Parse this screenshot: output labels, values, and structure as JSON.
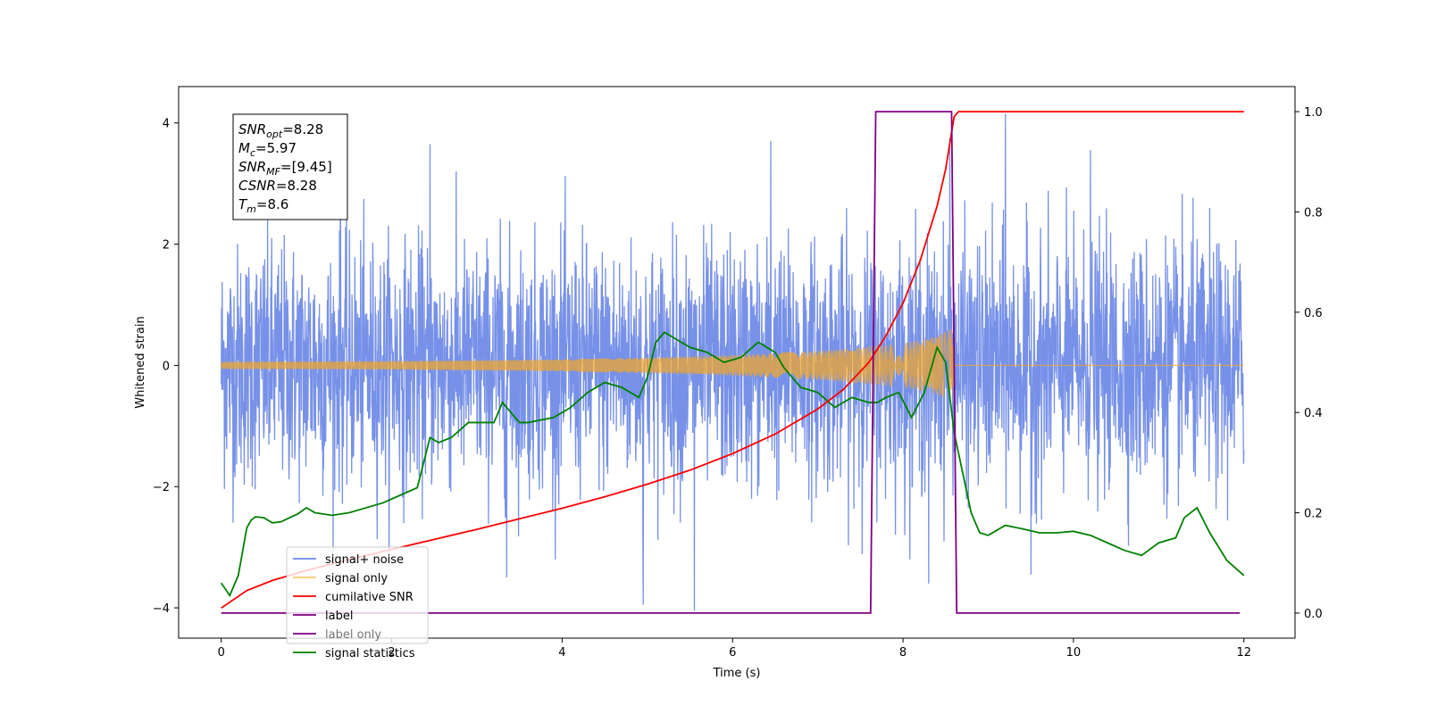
{
  "chart_data": {
    "type": "line",
    "xlabel": "Time (s)",
    "ylabel": "Whitened strain",
    "xlim": [
      -0.5,
      12.6
    ],
    "ylim": [
      -4.5,
      4.6
    ],
    "y2lim": [
      -0.05,
      1.05
    ],
    "x_ticks": [
      0,
      2,
      4,
      6,
      8,
      10,
      12
    ],
    "y_ticks": [
      -4,
      -2,
      0,
      2,
      4
    ],
    "y2_ticks": [
      0.0,
      0.2,
      0.4,
      0.6,
      0.8,
      1.0
    ],
    "x_tick_labels": [
      "0",
      "2",
      "4",
      "6",
      "8",
      "10",
      "12"
    ],
    "y_tick_labels": [
      "−4",
      "−2",
      "0",
      "2",
      "4"
    ],
    "y2_tick_labels": [
      "0.0",
      "0.2",
      "0.4",
      "0.6",
      "0.8",
      "1.0"
    ],
    "legend_position": "lower-left",
    "grid": false,
    "info_box": {
      "lines": [
        {
          "var": "SNR",
          "sub": "opt",
          "value": "=8.28"
        },
        {
          "var": "M",
          "sub": "c",
          "value": "=5.97"
        },
        {
          "var": "SNR",
          "sub": "MF",
          "value": "=[9.45]"
        },
        {
          "var": "CSNR",
          "sub": "",
          "value": "=8.28"
        },
        {
          "var": "T",
          "sub": "m",
          "value": "=8.6"
        }
      ]
    },
    "series": [
      {
        "name": "signal+ noise",
        "color": "#6b88e6",
        "axis": "left",
        "kind": "noise",
        "t_start": 0,
        "t_end": 12,
        "typical_range": [
          -1.8,
          1.8
        ],
        "extremes": [
          {
            "x": 4.95,
            "y": -3.95
          },
          {
            "x": 5.55,
            "y": -4.05
          },
          {
            "x": 9.2,
            "y": 4.15
          },
          {
            "x": 2.45,
            "y": 3.65
          },
          {
            "x": 6.45,
            "y": 3.7
          },
          {
            "x": 8.55,
            "y": 3.75
          },
          {
            "x": 1.4,
            "y": 3.35
          },
          {
            "x": 10.2,
            "y": 3.55
          },
          {
            "x": 3.35,
            "y": -3.5
          },
          {
            "x": 8.3,
            "y": -3.6
          },
          {
            "x": 9.5,
            "y": -3.45
          }
        ]
      },
      {
        "name": "signal only",
        "color": "#f5a623",
        "axis": "left",
        "kind": "chirp",
        "t_merge": 8.6,
        "envelope": [
          [
            0,
            0.06
          ],
          [
            2,
            0.07
          ],
          [
            4,
            0.1
          ],
          [
            5,
            0.13
          ],
          [
            6,
            0.17
          ],
          [
            7,
            0.24
          ],
          [
            7.5,
            0.3
          ],
          [
            8.0,
            0.37
          ],
          [
            8.3,
            0.44
          ],
          [
            8.6,
            0.62
          ]
        ]
      },
      {
        "name": "cumilative SNR",
        "color": "#ff0000",
        "axis": "right",
        "x": [
          0,
          0.3,
          0.6,
          1,
          1.5,
          2,
          2.5,
          3,
          3.5,
          4,
          4.5,
          5,
          5.5,
          6,
          6.5,
          7,
          7.3,
          7.6,
          7.8,
          8.0,
          8.2,
          8.4,
          8.5,
          8.6,
          8.65,
          12
        ],
        "y": [
          0.01,
          0.045,
          0.065,
          0.085,
          0.107,
          0.127,
          0.147,
          0.167,
          0.188,
          0.209,
          0.232,
          0.257,
          0.285,
          0.318,
          0.357,
          0.407,
          0.446,
          0.5,
          0.553,
          0.618,
          0.702,
          0.812,
          0.885,
          0.99,
          1.0,
          1.0
        ]
      },
      {
        "name": "label",
        "color": "#800080",
        "axis": "right",
        "x": [
          0,
          7.62,
          7.68,
          8.57,
          8.63,
          11.95
        ],
        "y": [
          0,
          0,
          1,
          1,
          0,
          0
        ]
      },
      {
        "name": "label only",
        "color": "#800080",
        "axis": "right",
        "x": [],
        "y": []
      },
      {
        "name": "signal statistics",
        "color": "#008000",
        "axis": "right",
        "x": [
          0,
          0.1,
          0.2,
          0.3,
          0.35,
          0.4,
          0.5,
          0.6,
          0.7,
          0.8,
          0.9,
          1.0,
          1.1,
          1.3,
          1.5,
          1.7,
          1.9,
          2.1,
          2.3,
          2.45,
          2.55,
          2.7,
          2.9,
          3.0,
          3.2,
          3.3,
          3.5,
          3.6,
          3.9,
          4.1,
          4.3,
          4.5,
          4.7,
          4.9,
          5.0,
          5.1,
          5.2,
          5.3,
          5.5,
          5.7,
          5.9,
          6.1,
          6.3,
          6.5,
          6.6,
          6.8,
          7.0,
          7.2,
          7.4,
          7.6,
          7.7,
          7.8,
          7.95,
          8.1,
          8.25,
          8.4,
          8.5,
          8.6,
          8.7,
          8.8,
          8.9,
          9.0,
          9.2,
          9.4,
          9.6,
          9.8,
          10.0,
          10.2,
          10.4,
          10.6,
          10.8,
          11.0,
          11.2,
          11.3,
          11.45,
          11.6,
          11.8,
          12.0
        ],
        "y": [
          0.06,
          0.035,
          0.075,
          0.17,
          0.185,
          0.192,
          0.19,
          0.18,
          0.182,
          0.19,
          0.198,
          0.21,
          0.2,
          0.195,
          0.2,
          0.21,
          0.22,
          0.235,
          0.25,
          0.35,
          0.34,
          0.35,
          0.38,
          0.38,
          0.38,
          0.42,
          0.38,
          0.38,
          0.39,
          0.41,
          0.44,
          0.46,
          0.45,
          0.43,
          0.47,
          0.54,
          0.56,
          0.55,
          0.53,
          0.52,
          0.5,
          0.51,
          0.54,
          0.52,
          0.49,
          0.45,
          0.44,
          0.41,
          0.43,
          0.42,
          0.42,
          0.43,
          0.44,
          0.39,
          0.44,
          0.53,
          0.5,
          0.36,
          0.28,
          0.2,
          0.16,
          0.155,
          0.175,
          0.168,
          0.16,
          0.16,
          0.163,
          0.155,
          0.14,
          0.125,
          0.115,
          0.14,
          0.15,
          0.19,
          0.21,
          0.16,
          0.105,
          0.075
        ]
      }
    ]
  }
}
